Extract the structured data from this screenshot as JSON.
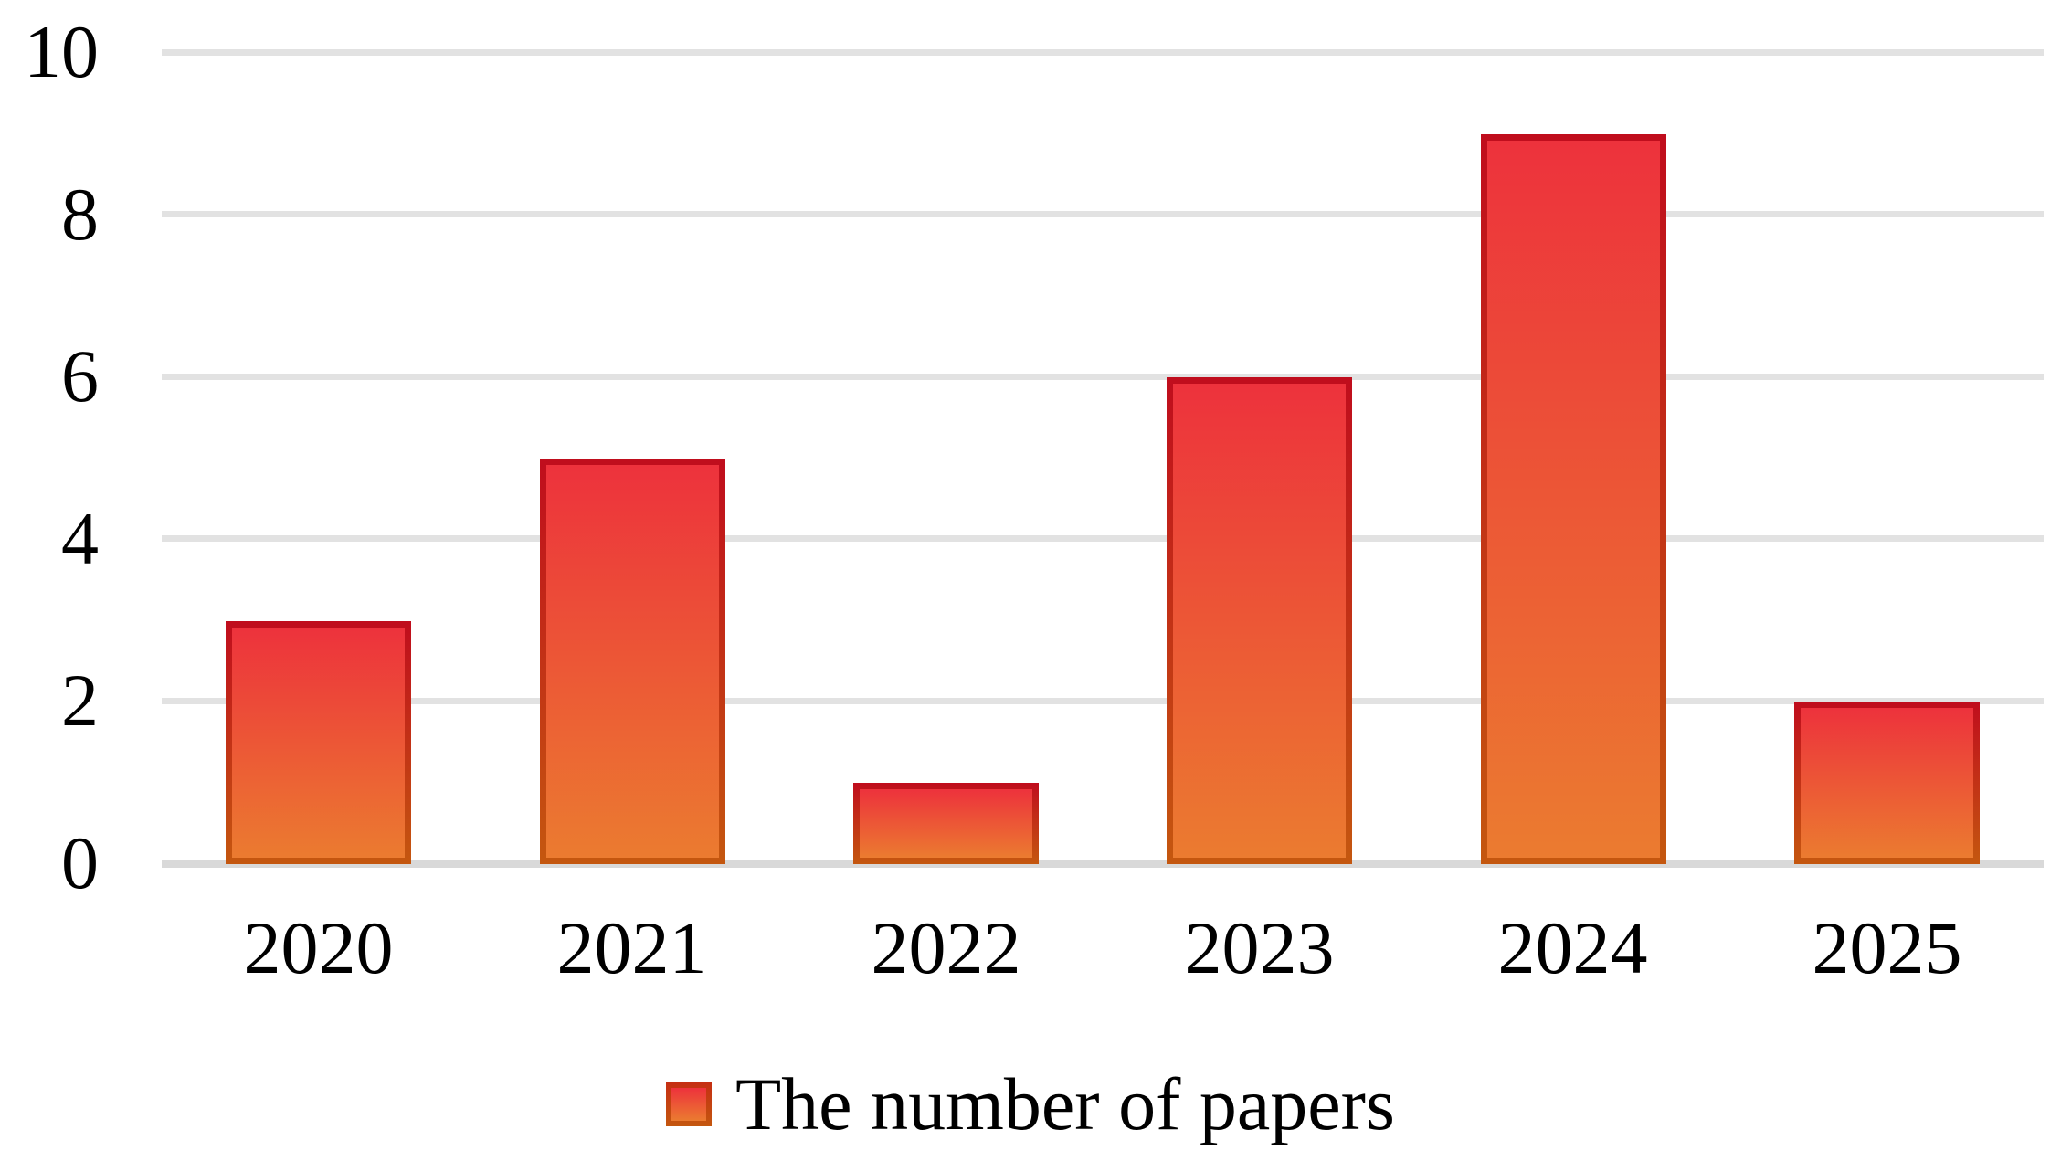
{
  "chart_data": {
    "type": "bar",
    "title": "",
    "categories": [
      "2020",
      "2021",
      "2022",
      "2023",
      "2024",
      "2025"
    ],
    "values": [
      3,
      5,
      1,
      6,
      9,
      2
    ],
    "series_name": "The number of papers",
    "legend": {
      "label": "The number of papers",
      "position": "bottom"
    },
    "xlabel": "",
    "ylabel": "",
    "ylim": [
      0,
      10
    ],
    "yticks": [
      0,
      2,
      4,
      6,
      8,
      10
    ],
    "ytick_labels": [
      "0",
      "2",
      "4",
      "6",
      "8",
      "10"
    ],
    "grid": "horizontal",
    "colors": {
      "bar_fill_top": "#ED323C",
      "bar_fill_bottom": "#EB7B30",
      "bar_border_top": "#C00D1D",
      "bar_border_bottom": "#C4570F",
      "gridline": "#E2E2E2",
      "axis_line": "#D9D9D9",
      "text": "#000000",
      "background": "#FFFFFF"
    }
  }
}
